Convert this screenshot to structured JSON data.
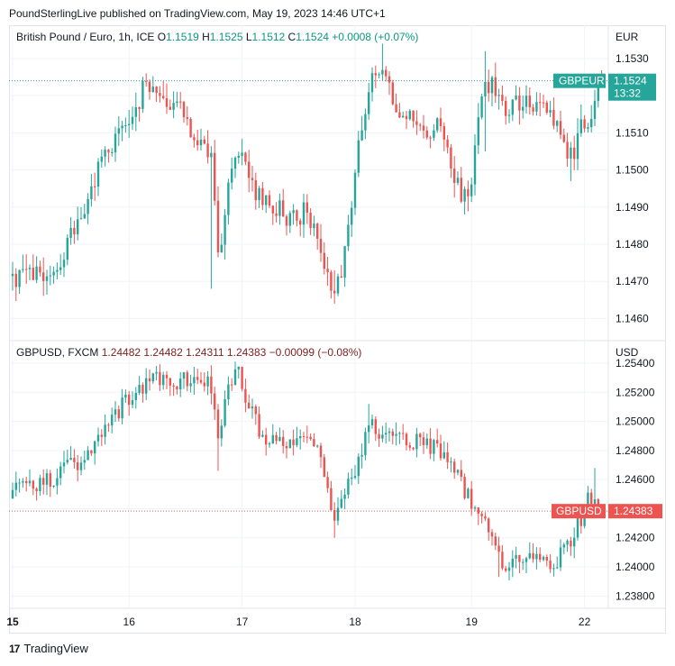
{
  "header": {
    "text": "PoundSterlingLive published on TradingView.com, May 19, 2023 14:46 UTC+1"
  },
  "footer": {
    "brand": "TradingView",
    "logo": "tv-logo-icon"
  },
  "colors": {
    "up": "#26a69a",
    "down": "#ef5350",
    "grid": "#f0f3fa",
    "text": "#131722",
    "up_text": "#089981",
    "down_text": "#7f1d1d"
  },
  "chart_data": [
    {
      "type": "candlestick",
      "legend": {
        "symbol": "British Pound / Euro, 1h, ICE",
        "o_label": "O",
        "o": "1.1519",
        "h_label": "H",
        "h": "1.1525",
        "l_label": "L",
        "l": "1.1512",
        "c_label": "C",
        "c": "1.1524",
        "change": "+0.0008 (+0.07%)"
      },
      "currency": "EUR",
      "ylim": [
        1.1455,
        1.1538
      ],
      "yticks": [
        "1.1530",
        "1.1520",
        "1.1510",
        "1.1500",
        "1.1490",
        "1.1480",
        "1.1470",
        "1.1460"
      ],
      "ytick_values": [
        1.153,
        1.152,
        1.151,
        1.15,
        1.149,
        1.148,
        1.147,
        1.146
      ],
      "last_label": {
        "ticker": "GBPEUR",
        "value": "1.1524",
        "countdown": "13:32",
        "price": 1.1524
      },
      "close_path": [
        [
          0,
          1.147
        ],
        [
          4,
          1.1472
        ],
        [
          8,
          1.1471
        ],
        [
          12,
          1.1475
        ],
        [
          15,
          1.1476
        ],
        [
          18,
          1.1485
        ],
        [
          22,
          1.1493
        ],
        [
          26,
          1.1502
        ],
        [
          30,
          1.1508
        ],
        [
          34,
          1.1515
        ],
        [
          38,
          1.1521
        ],
        [
          40,
          1.1522
        ],
        [
          44,
          1.1518
        ],
        [
          48,
          1.1517
        ],
        [
          52,
          1.1511
        ],
        [
          56,
          1.1506
        ],
        [
          58,
          1.1504
        ],
        [
          60,
          1.1475
        ],
        [
          62,
          1.1488
        ],
        [
          64,
          1.1501
        ],
        [
          67,
          1.1503
        ],
        [
          70,
          1.1495
        ],
        [
          74,
          1.1492
        ],
        [
          78,
          1.1489
        ],
        [
          82,
          1.1487
        ],
        [
          86,
          1.1489
        ],
        [
          88,
          1.1486
        ],
        [
          90,
          1.1478
        ],
        [
          92,
          1.1473
        ],
        [
          94,
          1.1468
        ],
        [
          96,
          1.1471
        ],
        [
          98,
          1.1486
        ],
        [
          100,
          1.1498
        ],
        [
          102,
          1.1512
        ],
        [
          104,
          1.1521
        ],
        [
          106,
          1.1525
        ],
        [
          108,
          1.1528
        ],
        [
          110,
          1.1524
        ],
        [
          112,
          1.1516
        ],
        [
          116,
          1.1514
        ],
        [
          120,
          1.1509
        ],
        [
          124,
          1.1512
        ],
        [
          127,
          1.1503
        ],
        [
          130,
          1.1495
        ],
        [
          132,
          1.1492
        ],
        [
          134,
          1.1497
        ],
        [
          136,
          1.1513
        ],
        [
          138,
          1.1525
        ],
        [
          140,
          1.1522
        ],
        [
          144,
          1.1516
        ],
        [
          148,
          1.1519
        ],
        [
          152,
          1.1517
        ],
        [
          156,
          1.1517
        ],
        [
          158,
          1.1513
        ],
        [
          160,
          1.1509
        ],
        [
          162,
          1.1503
        ],
        [
          164,
          1.1505
        ],
        [
          166,
          1.1514
        ],
        [
          168,
          1.1512
        ],
        [
          170,
          1.152
        ],
        [
          172,
          1.1524
        ]
      ],
      "spikes": [
        [
          58,
          1.1505,
          1.1468
        ],
        [
          94,
          1.1473,
          1.1464
        ],
        [
          108,
          1.1534,
          1.1524
        ],
        [
          132,
          1.1495,
          1.1488
        ],
        [
          138,
          1.1532,
          1.1505
        ],
        [
          163,
          1.1506,
          1.1497
        ]
      ]
    },
    {
      "type": "candlestick",
      "legend": {
        "symbol": "GBPUSD, FXCM",
        "o": "1.24482",
        "h": "1.24482",
        "l": "1.24311",
        "c": "1.24383",
        "change": "−0.00099 (−0.08%)"
      },
      "currency": "USD",
      "ylim": [
        1.2374,
        1.2553
      ],
      "yticks": [
        "1.25400",
        "1.25200",
        "1.25000",
        "1.24800",
        "1.24600",
        "1.24400",
        "1.24200",
        "1.24000",
        "1.23800"
      ],
      "ytick_values": [
        1.254,
        1.252,
        1.25,
        1.248,
        1.246,
        1.244,
        1.242,
        1.24,
        1.238
      ],
      "last_label": {
        "ticker": "GBPUSD",
        "value": "1.24383",
        "price": 1.24383
      },
      "close_path": [
        [
          0,
          1.2451
        ],
        [
          4,
          1.2454
        ],
        [
          8,
          1.2458
        ],
        [
          12,
          1.2462
        ],
        [
          16,
          1.2468
        ],
        [
          20,
          1.2474
        ],
        [
          24,
          1.2486
        ],
        [
          28,
          1.2499
        ],
        [
          32,
          1.2511
        ],
        [
          36,
          1.252
        ],
        [
          40,
          1.2528
        ],
        [
          44,
          1.2531
        ],
        [
          48,
          1.2528
        ],
        [
          52,
          1.2529
        ],
        [
          56,
          1.2527
        ],
        [
          58,
          1.2524
        ],
        [
          60,
          1.2485
        ],
        [
          62,
          1.2512
        ],
        [
          64,
          1.2528
        ],
        [
          66,
          1.2534
        ],
        [
          68,
          1.2518
        ],
        [
          70,
          1.251
        ],
        [
          72,
          1.2495
        ],
        [
          74,
          1.2487
        ],
        [
          78,
          1.2486
        ],
        [
          82,
          1.2485
        ],
        [
          86,
          1.2488
        ],
        [
          88,
          1.2482
        ],
        [
          90,
          1.2474
        ],
        [
          92,
          1.2455
        ],
        [
          94,
          1.2435
        ],
        [
          96,
          1.2444
        ],
        [
          98,
          1.2456
        ],
        [
          100,
          1.2462
        ],
        [
          102,
          1.2478
        ],
        [
          104,
          1.25
        ],
        [
          106,
          1.2496
        ],
        [
          108,
          1.249
        ],
        [
          112,
          1.2488
        ],
        [
          116,
          1.2486
        ],
        [
          120,
          1.2485
        ],
        [
          124,
          1.248
        ],
        [
          128,
          1.247
        ],
        [
          132,
          1.2452
        ],
        [
          134,
          1.2445
        ],
        [
          136,
          1.244
        ],
        [
          138,
          1.243
        ],
        [
          140,
          1.2418
        ],
        [
          142,
          1.2405
        ],
        [
          144,
          1.2402
        ],
        [
          148,
          1.2408
        ],
        [
          152,
          1.241
        ],
        [
          156,
          1.2404
        ],
        [
          158,
          1.2402
        ],
        [
          160,
          1.2408
        ],
        [
          162,
          1.2412
        ],
        [
          164,
          1.2425
        ],
        [
          166,
          1.2433
        ],
        [
          168,
          1.2445
        ],
        [
          170,
          1.2448
        ],
        [
          172,
          1.2438
        ]
      ],
      "spikes": [
        [
          60,
          1.2512,
          1.2466
        ],
        [
          94,
          1.2444,
          1.242
        ],
        [
          104,
          1.2512,
          1.249
        ],
        [
          142,
          1.2405,
          1.2393
        ],
        [
          170,
          1.2468,
          1.2443
        ]
      ]
    }
  ],
  "x_axis": {
    "ticks": [
      "15",
      "16",
      "17",
      "18",
      "19",
      "22"
    ],
    "tick_bars": [
      0,
      34,
      67,
      100,
      134,
      167
    ],
    "bold_ticks": [
      "15"
    ]
  }
}
